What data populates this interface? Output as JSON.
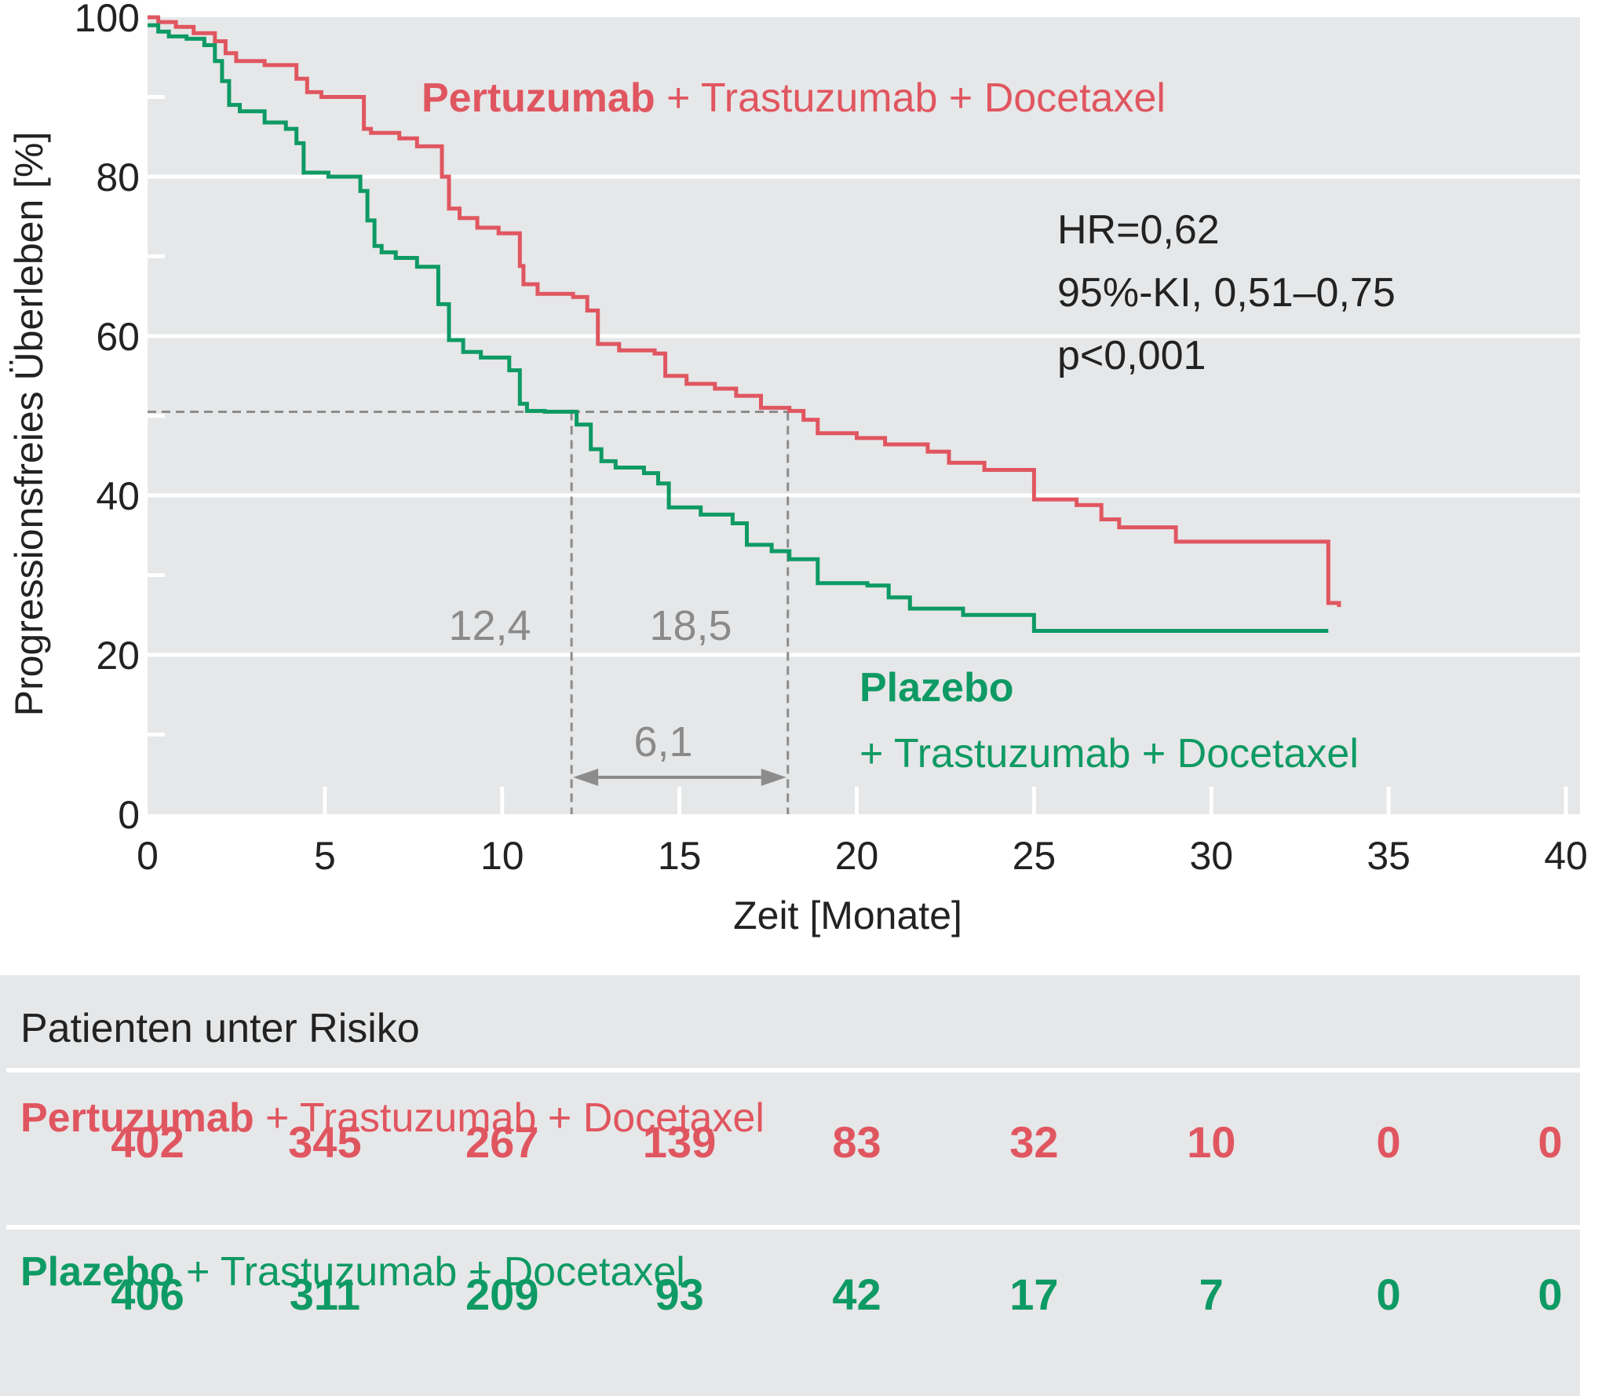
{
  "chart_data": {
    "type": "line",
    "subtype": "kaplan-meier",
    "xlabel": "Zeit [Monate]",
    "ylabel": "Progressionsfreies Überleben [%]",
    "xlim": [
      0,
      40
    ],
    "ylim": [
      0,
      100
    ],
    "x_ticks": [
      "0",
      "5",
      "10",
      "15",
      "20",
      "25",
      "30",
      "35",
      "40"
    ],
    "y_ticks": [
      "0",
      "20",
      "40",
      "60",
      "80",
      "100"
    ],
    "grid": true,
    "series": [
      {
        "name_bold": "Pertuzumab",
        "name_rest": " + Trastuzumab + Docetaxel",
        "color": "#e05660",
        "x": [
          0,
          0.3,
          0.8,
          1.3,
          1.9,
          2.2,
          2.5,
          3.3,
          4.2,
          4.5,
          4.9,
          5.2,
          6.1,
          6.3,
          7.1,
          7.6,
          8.3,
          8.5,
          8.8,
          9.3,
          9.9,
          10.5,
          10.6,
          11.0,
          12.0,
          12.4,
          12.7,
          13.3,
          14.3,
          14.6,
          15.2,
          16.0,
          16.6,
          17.3,
          18.1,
          18.5,
          18.9,
          20.0,
          20.8,
          22.0,
          22.6,
          23.6,
          24.7,
          25.0,
          26.2,
          26.9,
          27.4,
          29.0,
          33.3,
          33.6
        ],
        "y": [
          100,
          99.4,
          98.8,
          98.0,
          97.0,
          95.5,
          94.5,
          94.0,
          92.3,
          90.6,
          90.0,
          90.0,
          86.0,
          85.5,
          84.8,
          83.8,
          80.0,
          76.0,
          74.8,
          73.6,
          72.9,
          68.8,
          66.5,
          65.3,
          64.9,
          63.2,
          59.0,
          58.2,
          57.8,
          55.0,
          54.0,
          53.4,
          52.5,
          51.0,
          50.6,
          49.5,
          47.8,
          47.2,
          46.4,
          45.5,
          44.1,
          43.2,
          43.2,
          39.5,
          38.8,
          37.0,
          36.0,
          34.2,
          26.5,
          26.0
        ]
      },
      {
        "name_bold": "Plazebo",
        "name_rest": "+ Trastuzumab + Docetaxel",
        "color": "#0e9a64",
        "x": [
          0,
          0.3,
          0.6,
          1.1,
          1.6,
          1.9,
          2.1,
          2.3,
          2.6,
          3.3,
          3.9,
          4.2,
          4.4,
          5.1,
          6.0,
          6.2,
          6.4,
          6.6,
          7.0,
          7.6,
          8.2,
          8.5,
          8.9,
          9.4,
          10.2,
          10.5,
          10.7,
          11.2,
          12.1,
          12.5,
          12.8,
          13.2,
          14.0,
          14.4,
          14.7,
          15.6,
          16.5,
          16.9,
          17.6,
          18.1,
          18.9,
          20.3,
          20.9,
          21.5,
          23.0,
          25.0,
          33.3
        ],
        "y": [
          99,
          98.2,
          97.6,
          97.3,
          96.5,
          94.5,
          92.0,
          89.0,
          88.2,
          86.8,
          86.0,
          84.2,
          80.5,
          80.0,
          78.2,
          74.5,
          71.3,
          70.5,
          69.8,
          68.7,
          64.0,
          59.5,
          58.0,
          57.3,
          55.7,
          51.5,
          50.6,
          50.5,
          48.9,
          45.8,
          44.3,
          43.5,
          42.8,
          41.5,
          38.5,
          37.6,
          36.5,
          33.8,
          33.0,
          32.0,
          29.0,
          28.7,
          27.2,
          25.8,
          25.0,
          23.0,
          23.0
        ]
      }
    ],
    "stats": [
      "HR=0,62",
      "95%-KI, 0,51–0,75",
      "p<0,001"
    ],
    "median_lines": {
      "y": 50,
      "placebo_median_x": 12.4,
      "pertuzumab_median_x": 18.5,
      "placebo_label": "12,4",
      "pertuzumab_label": "18,5",
      "difference_label": "6,1"
    }
  },
  "risk_table": {
    "title": "Patienten unter Risiko",
    "rows": [
      {
        "label_bold": "Pertuzumab",
        "label_rest": " + Trastuzumab + Docetaxel",
        "color": "#e05660",
        "values": [
          "402",
          "345",
          "267",
          "139",
          "83",
          "32",
          "10",
          "0",
          "0"
        ]
      },
      {
        "label_bold": "Plazebo",
        "label_rest": " + Trastuzumab + Docetaxel",
        "color": "#0e9a64",
        "values": [
          "406",
          "311",
          "209",
          "93",
          "42",
          "17",
          "7",
          "0",
          "0"
        ]
      }
    ]
  }
}
